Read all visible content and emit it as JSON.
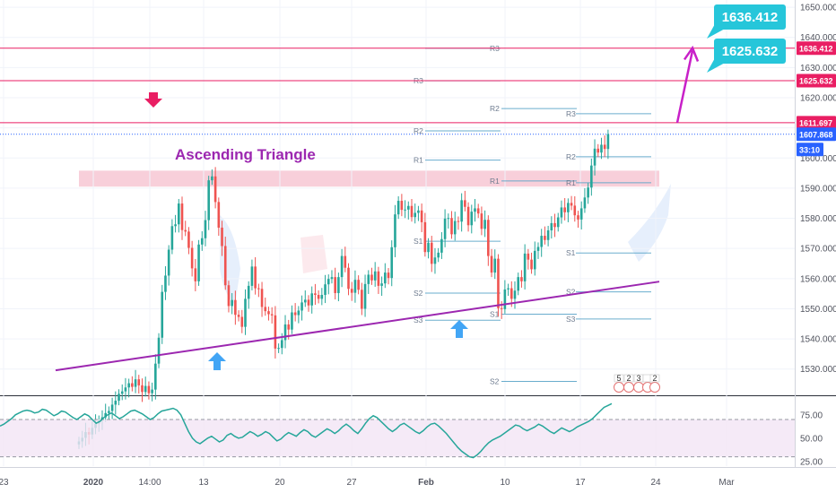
{
  "chart_data": {
    "type": "candlestick",
    "title": "",
    "annotation_text": "Ascending Triangle",
    "price_axis": {
      "ylim": [
        1521.3,
        1652.4
      ],
      "ticks": [
        1530,
        1540,
        1550,
        1560,
        1570,
        1580,
        1590,
        1600,
        1610,
        1620,
        1630,
        1640,
        1650
      ],
      "tick_labels": [
        "1530.000",
        "1540.000",
        "1550.000",
        "1560.000",
        "1570.000",
        "1580.000",
        "1590.000",
        "1600.000",
        "1610.000",
        "1620.000",
        "1630.000",
        "1640.000",
        "1650.000"
      ]
    },
    "price_tags": [
      {
        "value": 1636.412,
        "label": "1636.412",
        "color": "#e91e63"
      },
      {
        "value": 1625.632,
        "label": "1625.632",
        "color": "#e91e63"
      },
      {
        "value": 1611.697,
        "label": "1611.697",
        "color": "#e91e63"
      },
      {
        "value": 1607.868,
        "label": "1607.868",
        "color": "#2962ff"
      },
      {
        "value": 1603.0,
        "label": "33:10",
        "color": "#2962ff"
      }
    ],
    "callouts": [
      {
        "value": 1636.412,
        "label": "1636.412",
        "color": "#26c6da"
      },
      {
        "value": 1625.632,
        "label": "1625.632",
        "color": "#26c6da"
      }
    ],
    "horizontal_lines": [
      1636.412,
      1625.632,
      1611.697
    ],
    "last_price_line": 1607.868,
    "resistance_zone": [
      1590.5,
      1595.8
    ],
    "x_axis": {
      "tick_labels": [
        "23",
        "2020",
        "14:00",
        "13",
        "20",
        "27",
        "Feb",
        "10",
        "17",
        "24",
        "Mar"
      ],
      "bold_labels": [
        "2020",
        "Feb"
      ]
    },
    "candles": {
      "count": 138,
      "start_index": 0,
      "close": [
        1506.0,
        1507.2,
        1509.1,
        1508.3,
        1510.5,
        1511.9,
        1513.1,
        1514.0,
        1515.4,
        1516.1,
        1518.2,
        1519.5,
        1521.8,
        1522.6,
        1523.9,
        1525.3,
        1524.1,
        1526.6,
        1524.6,
        1522.4,
        1524.4,
        1522.0,
        1523.2,
        1531.8,
        1540.4,
        1555.6,
        1561.0,
        1569.6,
        1577.4,
        1578.0,
        1584.9,
        1576.1,
        1575.6,
        1570.2,
        1563.4,
        1559.1,
        1571.3,
        1573.4,
        1579.4,
        1592.6,
        1593.9,
        1585.4,
        1576.9,
        1570.8,
        1557.8,
        1550.9,
        1552.9,
        1548.0,
        1547.3,
        1544.0,
        1553.3,
        1557.6,
        1564.0,
        1556.8,
        1556.6,
        1550.6,
        1549.2,
        1548.2,
        1547.8,
        1536.8,
        1537.0,
        1539.6,
        1544.8,
        1543.1,
        1548.8,
        1547.9,
        1549.4,
        1552.1,
        1553.0,
        1551.1,
        1555.1,
        1554.6,
        1553.3,
        1554.6,
        1558.1,
        1559.9,
        1560.5,
        1555.2,
        1560.5,
        1567.5,
        1563.6,
        1556.6,
        1555.3,
        1559.6,
        1556.3,
        1550.0,
        1558.2,
        1561.3,
        1559.4,
        1562.4,
        1557.6,
        1558.4,
        1562.0,
        1560.2,
        1570.4,
        1581.3,
        1585.8,
        1582.8,
        1582.9,
        1584.1,
        1580.4,
        1581.8,
        1582.6,
        1578.7,
        1568.8,
        1571.9,
        1564.9,
        1567.0,
        1568.6,
        1573.1,
        1579.9,
        1580.1,
        1574.7,
        1579.1,
        1578.9,
        1586.0,
        1583.8,
        1577.7,
        1582.2,
        1583.3,
        1581.6,
        1576.5,
        1579.5,
        1567.5,
        1562.0,
        1566.6,
        1550.2,
        1549.9,
        1556.4,
        1556.8,
        1553.3,
        1556.0,
        1560.5,
        1559.1,
        1568.3,
        1566.3,
        1563.1,
        1569.2
      ],
      "note": "Values are eye-read approximations in price units; later candles continue to 1607.868"
    },
    "trendline": {
      "from_price": 1529.6,
      "to_price": 1559.0,
      "color": "#9c27b0"
    },
    "projection_arrow": {
      "from_price": 1611.7,
      "to_price": 1636.8,
      "color": "#c820c8"
    },
    "pivots": [
      {
        "label": "R3",
        "value": 1636.4
      },
      {
        "label": "R3",
        "value": 1625.6
      },
      {
        "label": "R2",
        "value": 1609.0
      },
      {
        "label": "R1",
        "value": 1599.3
      },
      {
        "label": "S1",
        "value": 1572.4
      },
      {
        "label": "S2",
        "value": 1555.2
      },
      {
        "label": "S3",
        "value": 1546.2
      },
      {
        "label": "R2",
        "value": 1616.4
      },
      {
        "label": "R3",
        "value": 1614.7
      },
      {
        "label": "R1",
        "value": 1592.4
      },
      {
        "label": "S1",
        "value": 1548.2
      },
      {
        "label": "S2",
        "value": 1525.9
      },
      {
        "label": "R2",
        "value": 1600.4
      },
      {
        "label": "R1",
        "value": 1591.8
      },
      {
        "label": "S1",
        "value": 1568.5
      },
      {
        "label": "S2",
        "value": 1555.6
      },
      {
        "label": "S3",
        "value": 1546.6
      }
    ],
    "events": [
      {
        "label": "5"
      },
      {
        "label": "2"
      },
      {
        "label": "3"
      },
      {
        "label": ""
      },
      {
        "label": "2"
      }
    ],
    "indicator": {
      "name": "",
      "ticks": [
        25,
        50,
        75
      ],
      "tick_labels": [
        "25.00",
        "50.00",
        "75.00"
      ],
      "upper": 70,
      "lower": 30,
      "range": [
        20,
        95
      ],
      "values": [
        63,
        65,
        68,
        71,
        75,
        77,
        79,
        80,
        79,
        77,
        78,
        81,
        80,
        77,
        74,
        76,
        79,
        78,
        75,
        72,
        70,
        73,
        76,
        74,
        70,
        66,
        68,
        72,
        75,
        77,
        74,
        71,
        73,
        76,
        79,
        80,
        78,
        76,
        73,
        70,
        72,
        76,
        79,
        80,
        81,
        82,
        80,
        75,
        66,
        57,
        50,
        46,
        44,
        47,
        50,
        52,
        49,
        46,
        48,
        53,
        55,
        52,
        50,
        51,
        54,
        57,
        55,
        52,
        54,
        57,
        55,
        51,
        47,
        49,
        53,
        56,
        54,
        52,
        56,
        59,
        57,
        53,
        51,
        54,
        57,
        60,
        58,
        55,
        58,
        62,
        65,
        62,
        58,
        55,
        60,
        66,
        71,
        74,
        72,
        68,
        64,
        60,
        57,
        60,
        64,
        66,
        63,
        60,
        57,
        55,
        58,
        62,
        65,
        66,
        63,
        59,
        55,
        50,
        45,
        40,
        36,
        33,
        30,
        29,
        32,
        36,
        41,
        45,
        48,
        50,
        52,
        55,
        58,
        61,
        64,
        63,
        60,
        58,
        60,
        62,
        65,
        63,
        60,
        57,
        55,
        58,
        61,
        59,
        57,
        59,
        62,
        64,
        66,
        68,
        71,
        75,
        79,
        83,
        85,
        87
      ]
    }
  }
}
